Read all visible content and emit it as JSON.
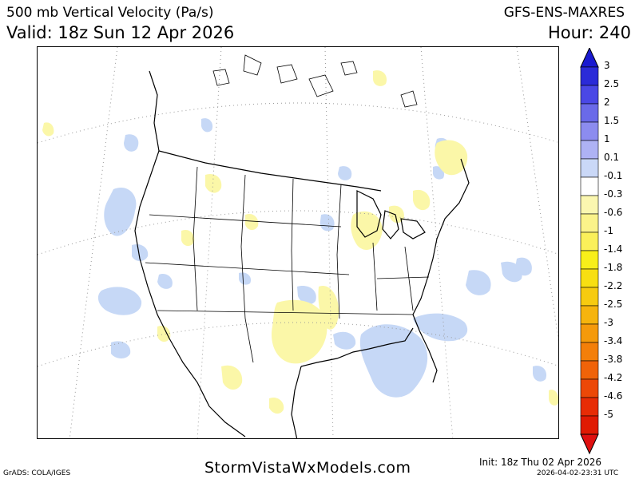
{
  "header": {
    "title_left": "500 mb Vertical Velocity (Pa/s)",
    "valid": "Valid: 18z Sun 12 Apr 2026",
    "model": "GFS-ENS-MAXRES",
    "hour": "Hour: 240"
  },
  "colors": {
    "rising_light": "#c6d8f6",
    "sinking_light": "#fbf7a8",
    "border": "#000000",
    "grid": "#9a9a9a"
  },
  "colorbar": {
    "levels": [
      {
        "label": "3",
        "color": "#2b2bd8"
      },
      {
        "label": "2.5",
        "color": "#4a48e6"
      },
      {
        "label": "2",
        "color": "#6a6ae9"
      },
      {
        "label": "1.5",
        "color": "#8c8cef"
      },
      {
        "label": "1",
        "color": "#aeb2f4"
      },
      {
        "label": "0.1",
        "color": "#cad8f7"
      },
      {
        "label": "-0.1",
        "color": "#ffffff"
      },
      {
        "label": "-0.3",
        "color": "#fbf7b0"
      },
      {
        "label": "-0.6",
        "color": "#fbf38a"
      },
      {
        "label": "-1",
        "color": "#faf05a"
      },
      {
        "label": "-1.4",
        "color": "#f8ef1a"
      },
      {
        "label": "-1.8",
        "color": "#f8df12"
      },
      {
        "label": "-2.2",
        "color": "#f7cb10"
      },
      {
        "label": "-2.5",
        "color": "#f6b40d"
      },
      {
        "label": "-3",
        "color": "#f59a0b"
      },
      {
        "label": "-3.4",
        "color": "#f37f0a"
      },
      {
        "label": "-3.8",
        "color": "#f06309"
      },
      {
        "label": "-4.2",
        "color": "#ec4807"
      },
      {
        "label": "-4.6",
        "color": "#e72c05"
      },
      {
        "label": "-5",
        "color": "#e01a03"
      }
    ],
    "top_arrow_color": "#1a1ad0",
    "bottom_arrow_color": "#e01010"
  },
  "footer": {
    "grads": "GrADS: COLA/IGES",
    "site": "StormVistaWxModels.com",
    "init": "Init: 18z Thu 02 Apr 2026",
    "stamp": "2026-04-02-23:31 UTC"
  }
}
